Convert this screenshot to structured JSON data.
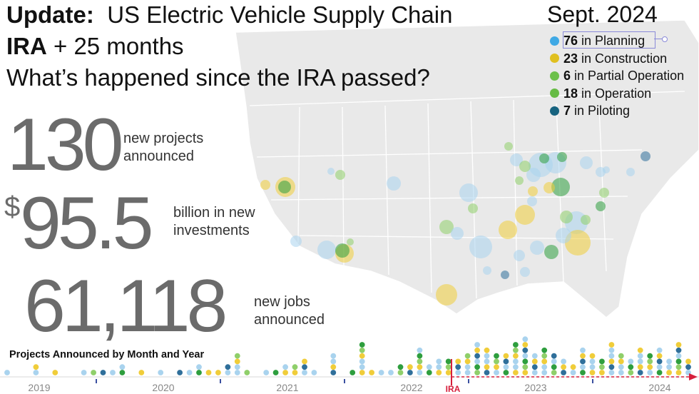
{
  "header": {
    "update_label": "Update:",
    "title": "US Electric Vehicle Supply Chain",
    "ira_label": "IRA",
    "ira_months": "+ 25 months",
    "question": "What’s happened since the IRA passed?",
    "date": "Sept. 2024"
  },
  "legend": [
    {
      "count": "76",
      "label": "in Planning",
      "color": "#3fa9e5"
    },
    {
      "count": "23",
      "label": "in Construction",
      "color": "#e0c020"
    },
    {
      "count": "6",
      "label": "in Partial Operation",
      "color": "#6cc04a"
    },
    {
      "count": "18",
      "label": "in Operation",
      "color": "#66bb44"
    },
    {
      "count": "7",
      "label": "in Piloting",
      "color": "#17637f"
    }
  ],
  "stats": {
    "projects_value": "130",
    "projects_caption_1": "new projects",
    "projects_caption_2": "announced",
    "dollar_sign": "$",
    "investment_value": "95.5",
    "investment_caption_1": "billion in new",
    "investment_caption_2": "investments",
    "jobs_value": "61,118",
    "jobs_caption_1": "new jobs",
    "jobs_caption_2": "announced"
  },
  "colors": {
    "planning": "#a9d3ee",
    "construction": "#f0cd3a",
    "partial": "#8fcf6a",
    "operation": "#2e9e3e",
    "piloting": "#2f6f9a",
    "ira_marker": "#d61f3c",
    "map_land": "#e9e9e9",
    "map_lines": "#ffffff"
  },
  "chart_data": {
    "type": "scatter",
    "title": "Projects Announced by Month and Year",
    "x_axis_labels": [
      "2019",
      "2020",
      "2021",
      "2022",
      "2023",
      "2024"
    ],
    "ira_marker_label": "IRA",
    "monthly_project_counts": [
      1,
      0,
      0,
      2,
      0,
      1,
      0,
      0,
      1,
      1,
      1,
      1,
      2,
      0,
      1,
      0,
      1,
      0,
      1,
      1,
      2,
      1,
      1,
      2,
      4,
      1,
      0,
      1,
      1,
      2,
      2,
      3,
      1,
      0,
      4,
      0,
      1,
      6,
      1,
      1,
      1,
      2,
      2,
      5,
      2,
      3,
      3,
      3,
      4,
      6,
      5,
      4,
      4,
      6,
      7,
      4,
      5,
      4,
      3,
      2,
      5,
      4,
      3,
      6,
      4,
      3,
      5,
      4,
      5,
      3,
      6,
      3
    ]
  }
}
